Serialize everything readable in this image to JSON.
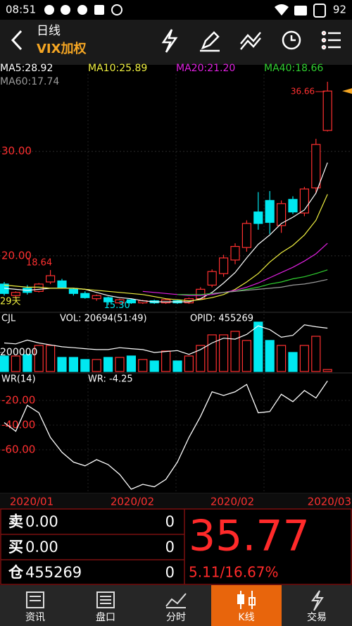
{
  "status_bar": {
    "time": "08:51",
    "battery": "92"
  },
  "header": {
    "period": "日线",
    "symbol": "VIX加权"
  },
  "chart_data": [
    {
      "type": "candlestick",
      "ylim": [
        14.8,
        37.4
      ],
      "yticks": [
        {
          "value": 30,
          "label": "30.00"
        },
        {
          "value": 20,
          "label": "20.00"
        }
      ],
      "up_color": "#ff3030",
      "down_color": "#00e8f0",
      "open": [
        17.3,
        16.2,
        16.9,
        16.6,
        17.5,
        17.6,
        16.8,
        16.4,
        15.9,
        16.0,
        15.5,
        15.8,
        15.5,
        15.7,
        15.5,
        15.7,
        15.5,
        15.9,
        17.2,
        18.3,
        19.6,
        20.8,
        24.2,
        25.3,
        22.9,
        25.4,
        24.1,
        26.5,
        32.0
      ],
      "high": [
        17.5,
        16.6,
        17.2,
        17.4,
        18.64,
        17.8,
        16.9,
        16.6,
        16.3,
        16.1,
        15.9,
        15.9,
        15.8,
        15.8,
        15.9,
        15.8,
        16.0,
        17.0,
        18.7,
        20.1,
        21.2,
        23.4,
        26.1,
        26.2,
        25.3,
        25.7,
        26.6,
        31.2,
        36.66
      ],
      "low": [
        16.2,
        15.9,
        16.3,
        16.5,
        17.3,
        16.9,
        16.2,
        15.9,
        15.7,
        15.3,
        15.4,
        15.4,
        15.4,
        15.4,
        15.4,
        15.4,
        15.4,
        15.8,
        17.0,
        18.0,
        19.2,
        20.4,
        22.5,
        22.1,
        22.2,
        24.0,
        23.8,
        26.0,
        31.9
      ],
      "close": [
        16.4,
        16.5,
        16.5,
        17.3,
        18.1,
        17.0,
        16.4,
        16.0,
        16.2,
        15.6,
        15.8,
        15.5,
        15.7,
        15.5,
        15.8,
        15.5,
        15.9,
        16.8,
        18.5,
        19.8,
        20.9,
        23.1,
        23.1,
        23.2,
        25.0,
        24.2,
        26.4,
        30.66,
        35.77
      ],
      "series": [
        {
          "name": "MA5:28.92",
          "color": "#ffffff",
          "values": [
            16.9,
            16.8,
            16.7,
            16.8,
            16.9,
            16.9,
            16.9,
            16.8,
            16.5,
            16.2,
            16.0,
            15.9,
            15.7,
            15.6,
            15.6,
            15.6,
            15.6,
            15.9,
            16.5,
            17.4,
            18.4,
            19.8,
            21.1,
            22.0,
            23.1,
            23.7,
            24.4,
            26.0,
            28.92
          ]
        },
        {
          "name": "MA10:25.89",
          "color": "#f0f040",
          "values": [
            17.2,
            17.1,
            17.0,
            17.0,
            16.9,
            16.9,
            16.9,
            16.8,
            16.7,
            16.6,
            16.5,
            16.4,
            16.3,
            16.1,
            15.9,
            15.8,
            15.7,
            15.8,
            16.0,
            16.3,
            16.8,
            17.5,
            18.3,
            19.4,
            20.3,
            21.0,
            22.0,
            23.4,
            25.89
          ]
        },
        {
          "name": "MA20:21.20",
          "color": "#e020e0",
          "values": [
            null,
            null,
            null,
            null,
            null,
            null,
            null,
            null,
            null,
            null,
            null,
            null,
            16.6,
            16.5,
            16.4,
            16.3,
            16.2,
            16.2,
            16.3,
            16.5,
            16.7,
            17.0,
            17.4,
            17.9,
            18.4,
            18.9,
            19.5,
            20.2,
            21.2
          ]
        },
        {
          "name": "MA40:18.66",
          "color": "#30d030",
          "values": [
            null,
            null,
            null,
            null,
            null,
            null,
            null,
            null,
            null,
            null,
            null,
            null,
            null,
            null,
            null,
            16.3,
            16.3,
            16.3,
            16.4,
            16.5,
            16.6,
            16.8,
            17.0,
            17.3,
            17.5,
            17.8,
            18.0,
            18.3,
            18.66
          ]
        },
        {
          "name": "MA60:17.74",
          "color": "#9a9a9a",
          "values": [
            null,
            null,
            null,
            null,
            null,
            null,
            null,
            null,
            null,
            null,
            null,
            null,
            null,
            null,
            null,
            null,
            null,
            null,
            16.4,
            16.5,
            16.6,
            16.7,
            16.8,
            16.9,
            17.0,
            17.2,
            17.3,
            17.5,
            17.74
          ]
        }
      ],
      "annotations": [
        {
          "value": 18.64,
          "label": "18.64"
        },
        {
          "value": 15.3,
          "label": "15.30"
        },
        {
          "value": 36.66,
          "label": "36.66"
        }
      ],
      "edge_label": "29天"
    },
    {
      "type": "bar",
      "title": "CJL",
      "ylim": [
        0,
        533000
      ],
      "yticks": [
        200000
      ],
      "series": [
        {
          "name": "VOL: 20694(51:49)",
          "values": [
            163000,
            163000,
            178000,
            274000,
            274000,
            148000,
            148000,
            126000,
            126000,
            148000,
            148000,
            163000,
            126000,
            111000,
            215000,
            111000,
            163000,
            274000,
            385000,
            385000,
            422000,
            326000,
            519000,
            326000,
            274000,
            200000,
            274000,
            370000,
            20694
          ]
        },
        {
          "name": "OPID: 455269",
          "color": "#ffffff",
          "values": [
            300000,
            290000,
            330000,
            300000,
            280000,
            260000,
            250000,
            240000,
            230000,
            230000,
            250000,
            240000,
            230000,
            200000,
            210000,
            220000,
            180000,
            230000,
            300000,
            350000,
            340000,
            390000,
            480000,
            440000,
            360000,
            380000,
            490000,
            470000,
            455269
          ]
        }
      ]
    },
    {
      "type": "line",
      "title": "WR(14)",
      "ylim": [
        -96,
        0
      ],
      "yticks": [
        {
          "value": -20,
          "label": "-20.00"
        },
        {
          "value": -40,
          "label": "-40.00"
        },
        {
          "value": -60,
          "label": "-60.00"
        }
      ],
      "series": [
        {
          "name": "WR: -4.25",
          "color": "#ffffff",
          "values": [
            -38,
            -45,
            -24,
            -30,
            -50,
            -62,
            -70,
            -73,
            -68,
            -72,
            -80,
            -92,
            -88,
            -90,
            -84,
            -70,
            -50,
            -33,
            -13,
            -16,
            -13,
            -7,
            -30,
            -29,
            -15,
            -21,
            -12,
            -18,
            -4.25
          ]
        }
      ]
    }
  ],
  "date_axis": [
    "2020/01",
    "2020/02",
    "2020/02",
    "2020/03"
  ],
  "quote": {
    "rows": [
      {
        "label": "卖",
        "price": "0.00",
        "qty": "0"
      },
      {
        "label": "买",
        "price": "0.00",
        "qty": "0"
      },
      {
        "label": "仓",
        "price": "455269",
        "qty": "0"
      }
    ],
    "last": "35.77",
    "change": "5.11/16.67%"
  },
  "tabs": [
    "资讯",
    "盘口",
    "分时",
    "K线",
    "交易"
  ]
}
